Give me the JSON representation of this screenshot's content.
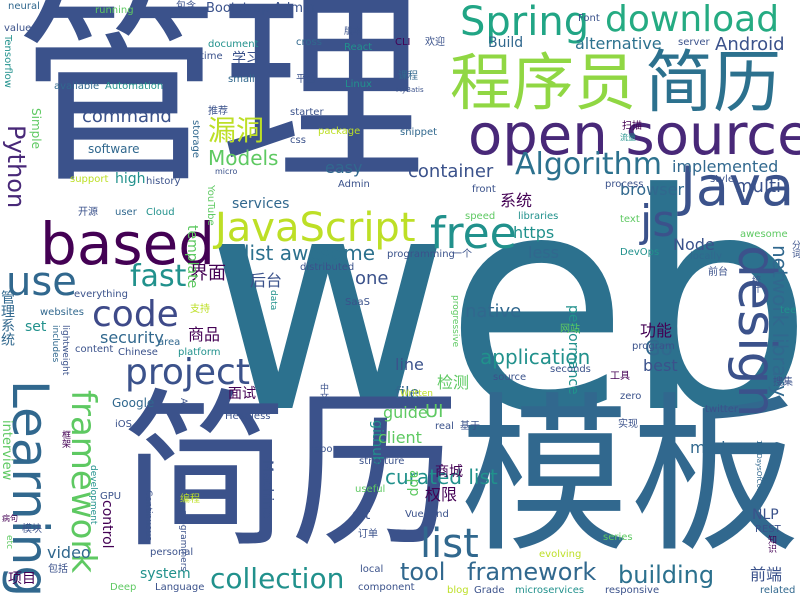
{
  "palette": {
    "purple": "#440154",
    "indigo": "#3b528b",
    "teal": "#21918c",
    "green": "#5ec962",
    "yellow": "#c8d22e",
    "slate": "#31688e"
  },
  "words": [
    {
      "text": "web"
    },
    {
      "text": "管理"
    },
    {
      "text": "简历"
    },
    {
      "text": "模板"
    },
    {
      "text": "open source"
    },
    {
      "text": "程序员"
    },
    {
      "text": "简历"
    },
    {
      "text": "Spring"
    },
    {
      "text": "download"
    },
    {
      "text": "based"
    },
    {
      "text": "Java"
    },
    {
      "text": "JavaScript"
    },
    {
      "text": "free"
    },
    {
      "text": "js"
    },
    {
      "text": "Learning"
    },
    {
      "text": "design"
    },
    {
      "text": "project"
    },
    {
      "text": "code"
    },
    {
      "text": "use"
    },
    {
      "text": "framework"
    },
    {
      "text": "list"
    },
    {
      "text": "collection"
    },
    {
      "text": "Algorithm"
    },
    {
      "text": "Python"
    },
    {
      "text": "漏洞"
    },
    {
      "text": "fast"
    },
    {
      "text": "network library"
    },
    {
      "text": "framework"
    },
    {
      "text": "building"
    },
    {
      "text": "tool"
    },
    {
      "text": "list awesome"
    },
    {
      "text": "curated list"
    },
    {
      "text": "application"
    },
    {
      "text": "Models"
    },
    {
      "text": "command"
    },
    {
      "text": "Android"
    },
    {
      "text": "alternative"
    },
    {
      "text": "implemented"
    },
    {
      "text": "container"
    },
    {
      "text": "multi"
    },
    {
      "text": "browser"
    },
    {
      "text": "easy"
    },
    {
      "text": "系统"
    },
    {
      "text": "https"
    },
    {
      "text": "less"
    },
    {
      "text": "Node"
    },
    {
      "text": "one"
    },
    {
      "text": "界面"
    },
    {
      "text": "后台"
    },
    {
      "text": "Go"
    },
    {
      "text": "best"
    },
    {
      "text": "功能"
    },
    {
      "text": "商品"
    },
    {
      "text": "security"
    },
    {
      "text": "file"
    },
    {
      "text": "guide"
    },
    {
      "text": "line"
    },
    {
      "text": "native"
    },
    {
      "text": "github"
    },
    {
      "text": "performance"
    },
    {
      "text": "template"
    },
    {
      "text": "services"
    },
    {
      "text": "学习"
    },
    {
      "text": "UI"
    },
    {
      "text": "client"
    },
    {
      "text": "检测"
    },
    {
      "text": "app"
    },
    {
      "text": "商城"
    },
    {
      "text": "权限"
    },
    {
      "text": "modern"
    },
    {
      "text": "NLP"
    },
    {
      "text": "前端"
    },
    {
      "text": "video"
    },
    {
      "text": "control"
    },
    {
      "text": "system"
    },
    {
      "text": "项目"
    },
    {
      "text": "管理系统"
    },
    {
      "text": "interview"
    },
    {
      "text": "git"
    },
    {
      "text": "Machine"
    },
    {
      "text": "面试"
    },
    {
      "text": "set"
    },
    {
      "text": "Build"
    },
    {
      "text": "high"
    },
    {
      "text": "software"
    },
    {
      "text": "Simple"
    },
    {
      "text": "Google"
    },
    {
      "text": "Bootstrap Admin"
    },
    {
      "text": "running"
    },
    {
      "text": "neural"
    },
    {
      "text": "包含"
    },
    {
      "text": "Tensorflow"
    },
    {
      "text": "value"
    },
    {
      "text": "document"
    },
    {
      "text": "time"
    },
    {
      "text": "small"
    },
    {
      "text": "available"
    },
    {
      "text": "Automation"
    },
    {
      "text": "推荐"
    },
    {
      "text": "storage"
    },
    {
      "text": "micro"
    },
    {
      "text": "YouTube"
    },
    {
      "text": "history"
    },
    {
      "text": "support"
    },
    {
      "text": "开源"
    },
    {
      "text": "user"
    },
    {
      "text": "Cloud"
    },
    {
      "text": "cross"
    },
    {
      "text": "React"
    },
    {
      "text": "版本"
    },
    {
      "text": "CLI"
    },
    {
      "text": "欢迎"
    },
    {
      "text": "Font"
    },
    {
      "text": "server"
    },
    {
      "text": "Linux"
    },
    {
      "text": "平台"
    },
    {
      "text": "课程"
    },
    {
      "text": "MyBatis"
    },
    {
      "text": "starter"
    },
    {
      "text": "css"
    },
    {
      "text": "package"
    },
    {
      "text": "snippet"
    },
    {
      "text": "Admin"
    },
    {
      "text": "front"
    },
    {
      "text": "process"
    },
    {
      "text": "扫描"
    },
    {
      "text": "流量"
    },
    {
      "text": "style"
    },
    {
      "text": "speed"
    },
    {
      "text": "libraries"
    },
    {
      "text": "text"
    },
    {
      "text": "awesome"
    },
    {
      "text": "DevOps"
    },
    {
      "text": "locally"
    },
    {
      "text": "前台"
    },
    {
      "text": "统计"
    },
    {
      "text": "分词"
    },
    {
      "text": "tee"
    },
    {
      "text": "distributed"
    },
    {
      "text": "programming"
    },
    {
      "text": "一个"
    },
    {
      "text": "everything"
    },
    {
      "text": "data"
    },
    {
      "text": "progressive"
    },
    {
      "text": "SaaS"
    },
    {
      "text": "websites"
    },
    {
      "text": "area"
    },
    {
      "text": "支持"
    },
    {
      "text": "content"
    },
    {
      "text": "Chinese"
    },
    {
      "text": "platform"
    },
    {
      "text": "网站"
    },
    {
      "text": "seconds"
    },
    {
      "text": "source"
    },
    {
      "text": "includes"
    },
    {
      "text": "lightweight"
    },
    {
      "text": "program"
    },
    {
      "text": "工具"
    },
    {
      "text": "搜集"
    },
    {
      "text": "API"
    },
    {
      "text": "Headless"
    },
    {
      "text": "中文"
    },
    {
      "text": "Written"
    },
    {
      "text": "real"
    },
    {
      "text": "zero"
    },
    {
      "text": "基于"
    },
    {
      "text": "实现"
    },
    {
      "text": "twitter"
    },
    {
      "text": "iOS"
    },
    {
      "text": "repo"
    },
    {
      "text": "structure"
    },
    {
      "text": "框架"
    },
    {
      "text": "100DaysOfCode"
    },
    {
      "text": "development"
    },
    {
      "text": "GPU"
    },
    {
      "text": "Continuous"
    },
    {
      "text": "编程"
    },
    {
      "text": "useful"
    },
    {
      "text": "病句"
    },
    {
      "text": "模块"
    },
    {
      "text": "programmers"
    },
    {
      "text": "Vue"
    },
    {
      "text": "end"
    },
    {
      "text": "订单"
    },
    {
      "text": "REST"
    },
    {
      "text": "知识"
    },
    {
      "text": "etc"
    },
    {
      "text": "personal"
    },
    {
      "text": "series"
    },
    {
      "text": "包括"
    },
    {
      "text": "evolving"
    },
    {
      "text": "local"
    },
    {
      "text": "Deep"
    },
    {
      "text": "Language"
    },
    {
      "text": "component"
    },
    {
      "text": "blog"
    },
    {
      "text": "Grade"
    },
    {
      "text": "microservices"
    },
    {
      "text": "responsive"
    },
    {
      "text": "related"
    }
  ]
}
